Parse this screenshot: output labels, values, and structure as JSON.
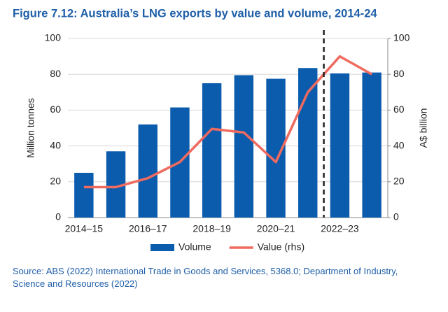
{
  "chart_data": {
    "type": "bar_line",
    "title": "Figure 7.12: Australia’s LNG exports by value and volume, 2014-24",
    "categories": [
      "2014–15",
      null,
      "2016–17",
      null,
      "2018–19",
      null,
      "2020–21",
      null,
      "2022–23",
      null
    ],
    "series": [
      {
        "name": "Volume",
        "type": "bar",
        "color": "#0b5cad",
        "axis": "y",
        "values": [
          25,
          37,
          52,
          61.5,
          75,
          79.5,
          77.5,
          83.5,
          80.5,
          81
        ]
      },
      {
        "name": "Value (rhs)",
        "type": "line",
        "color": "#ef6a5f",
        "axis": "y2",
        "values": [
          17,
          17,
          22,
          31,
          49.5,
          47.5,
          31,
          70,
          90,
          80
        ]
      }
    ],
    "ylabel": "Million tonnes",
    "y2label": "A$ billion",
    "ylim": [
      0,
      100
    ],
    "yticks": [
      0,
      20,
      40,
      60,
      80,
      100
    ],
    "y2lim": [
      0,
      100
    ],
    "y2ticks": [
      0,
      20,
      40,
      60,
      80,
      100
    ],
    "grid": true,
    "legend": "bottom",
    "source": "Source: ABS (2022) International Trade in Goods and Services, 5368.0; Department of Industry, Science and Resources (2022)"
  }
}
